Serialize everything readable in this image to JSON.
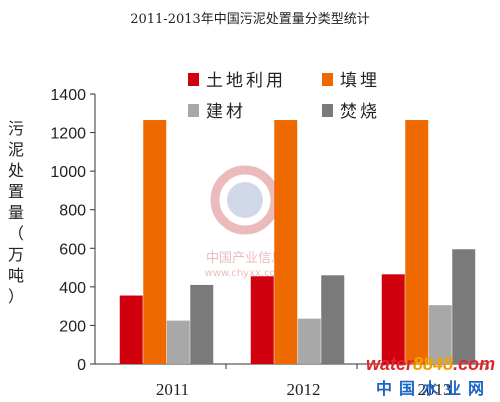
{
  "chart_data": {
    "type": "bar",
    "title": "2011-2013年中国污泥处置量分类型统计",
    "ylabel": "污泥处置量（万吨）",
    "xlabel": "",
    "categories": [
      "2011",
      "2012",
      "2013"
    ],
    "ylim": [
      0,
      1400
    ],
    "yticks": [
      0,
      200,
      400,
      600,
      800,
      1000,
      1200,
      1400
    ],
    "legend_position": "top-right",
    "series": [
      {
        "name": "土地利用",
        "color": "#d0000f",
        "values": [
          355,
          455,
          465
        ]
      },
      {
        "name": "填埋",
        "color": "#ee6a00",
        "values": [
          1265,
          1265,
          1265
        ]
      },
      {
        "name": "建材",
        "color": "#a8a8a8",
        "values": [
          225,
          235,
          305
        ]
      },
      {
        "name": "焚烧",
        "color": "#7a7a7a",
        "values": [
          410,
          460,
          595
        ]
      }
    ]
  },
  "watermark": {
    "logo_text": "中国产业信息",
    "logo_url_text": "www.chyxx.com",
    "site_prefix": "water",
    "site_number": "8848",
    "site_suffix": ".com",
    "site_subtitle": "中国水业网"
  }
}
